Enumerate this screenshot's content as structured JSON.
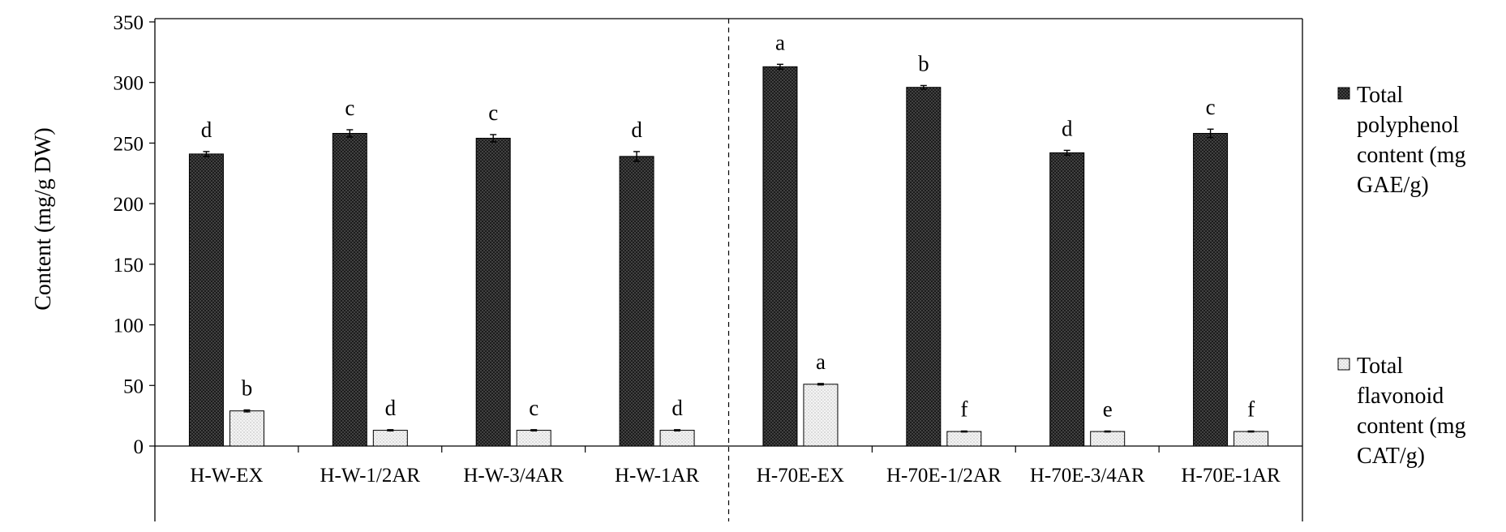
{
  "chart_data": {
    "type": "bar",
    "title": "",
    "xlabel": "",
    "ylabel": "Content (mg/g DW)",
    "ylim": [
      0,
      350
    ],
    "yticks": [
      0,
      50,
      100,
      150,
      200,
      250,
      300,
      350
    ],
    "grid": false,
    "legend_position": "right",
    "categories": [
      "H-W-EX",
      "H-W-1/2AR",
      "H-W-3/4AR",
      "H-W-1AR",
      "H-70E-EX",
      "H-70E-1/2AR",
      "H-70E-3/4AR",
      "H-70E-1AR"
    ],
    "group_divider_after": 4,
    "series": [
      {
        "name_lines": [
          "Total",
          "polyphenol",
          "content (mg",
          "GAE/g)"
        ],
        "color": "#2b2b2b",
        "pattern": "dark-dots",
        "values": [
          241,
          258,
          254,
          239,
          313,
          296,
          242,
          258
        ],
        "errors": [
          2,
          3,
          3,
          4,
          2,
          1.5,
          2,
          3.5
        ],
        "significance": [
          "d",
          "c",
          "c",
          "d",
          "a",
          "b",
          "d",
          "c"
        ]
      },
      {
        "name_lines": [
          "Total",
          "flavonoid",
          "content (mg",
          "CAT/g)"
        ],
        "color": "#f2f2f2",
        "pattern": "light-dots",
        "values": [
          29,
          13,
          13,
          13,
          51,
          12,
          12,
          12
        ],
        "errors": [
          0.8,
          0.5,
          0.5,
          0.5,
          0.6,
          0.4,
          0.4,
          0.4
        ],
        "significance": [
          "b",
          "d",
          "c",
          "d",
          "a",
          "f",
          "e",
          "f"
        ]
      }
    ]
  }
}
